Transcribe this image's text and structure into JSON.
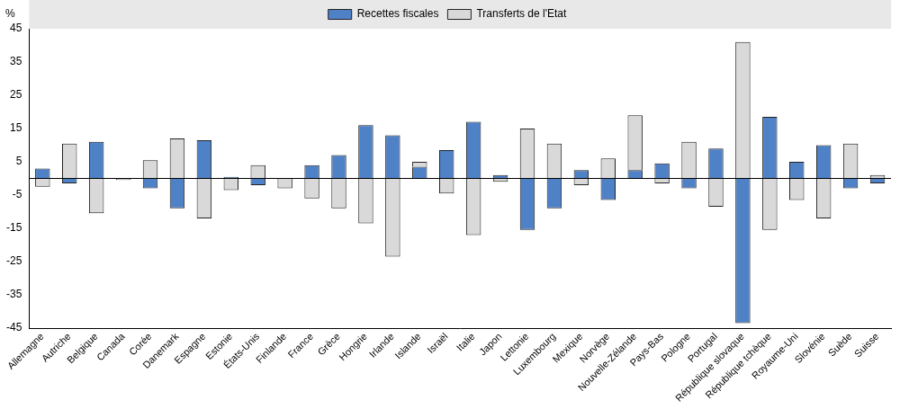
{
  "chart_data": {
    "type": "bar",
    "stacked": true,
    "legend": "top",
    "grid": false,
    "y_label": "%",
    "categories": [
      "Allemagne",
      "Autriche",
      "Belgique",
      "Canada",
      "Corée",
      "Danemark",
      "Espagne",
      "Estonie",
      "États-Unis",
      "Finlande",
      "France",
      "Grèce",
      "Hongrie",
      "Irlande",
      "Islande",
      "Israël",
      "Italie",
      "Japon",
      "Lettonie",
      "Luxembourg",
      "Mexique",
      "Norvège",
      "Nouvelle-Zélande",
      "Pays-Bas",
      "Pologne",
      "Portugal",
      "République slovaque",
      "République tchèque",
      "Royaume-Uni",
      "Slovénie",
      "Suède",
      "Suisse"
    ],
    "series": [
      {
        "name": "Recettes fiscales",
        "color": "#4f81c7",
        "values": [
          3,
          -1.5,
          11,
          0,
          -3,
          -9,
          11.5,
          0.5,
          -2,
          0,
          4,
          7,
          16,
          13,
          3.5,
          8.5,
          17,
          1,
          -15.5,
          -9,
          2.5,
          -6.5,
          2.5,
          4.5,
          -3,
          9,
          -43.5,
          18.5,
          5,
          10,
          -3,
          -1.5
        ]
      },
      {
        "name": "Transferts de l'Etat",
        "color": "#d9d9d9",
        "values": [
          -2.5,
          10.5,
          -10.5,
          -0.5,
          5.5,
          12,
          -12,
          -3.5,
          4,
          -3,
          -6,
          -9,
          -13.5,
          -23.5,
          1.5,
          -4.5,
          -17,
          -1,
          15,
          10.5,
          -2,
          6,
          16.5,
          -1.5,
          11,
          -8.5,
          41,
          -15.5,
          -6.5,
          -12,
          10.5,
          1
        ]
      }
    ],
    "ylim": [
      -45,
      45
    ],
    "yticks": [
      -45,
      -35,
      -25,
      -15,
      -5,
      5,
      15,
      25,
      35,
      45
    ]
  }
}
